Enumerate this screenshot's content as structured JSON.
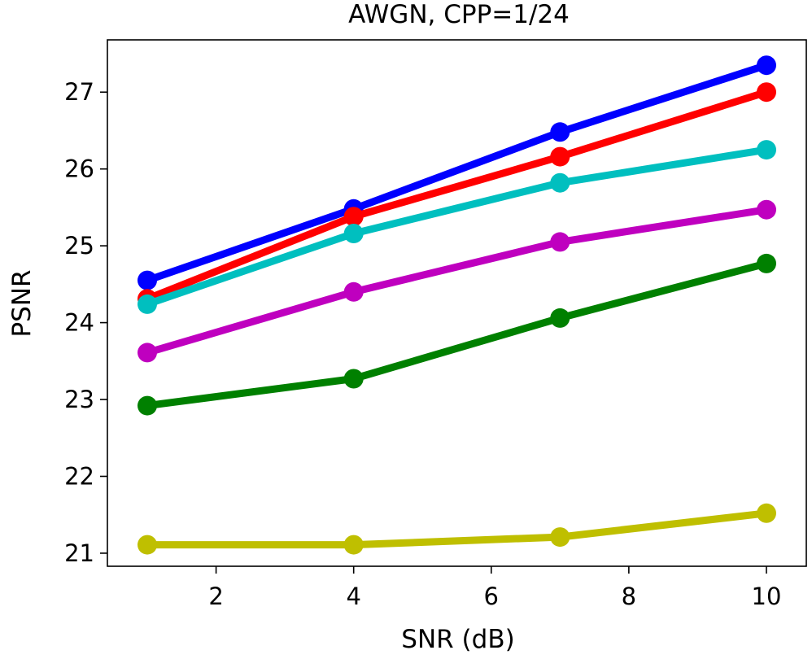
{
  "chart_data": {
    "type": "line",
    "title": "AWGN, CPP=1/24",
    "xlabel": "SNR (dB)",
    "ylabel": "PSNR",
    "xlim": [
      0.42,
      10.58
    ],
    "ylim": [
      20.83,
      27.68
    ],
    "xticks": [
      2,
      4,
      6,
      8,
      10
    ],
    "yticks": [
      21,
      22,
      23,
      24,
      25,
      26,
      27
    ],
    "grid": false,
    "x": [
      1,
      4,
      7,
      10
    ],
    "series": [
      {
        "name": "blue",
        "color": "#0000ff",
        "values": [
          24.55,
          25.48,
          26.48,
          27.35
        ]
      },
      {
        "name": "red",
        "color": "#ff0000",
        "values": [
          24.31,
          25.38,
          26.16,
          27.0
        ]
      },
      {
        "name": "cyan",
        "color": "#00bfbf",
        "values": [
          24.24,
          25.16,
          25.82,
          26.25
        ]
      },
      {
        "name": "magenta",
        "color": "#bf00bf",
        "values": [
          23.61,
          24.4,
          25.05,
          25.47
        ]
      },
      {
        "name": "green",
        "color": "#008000",
        "values": [
          22.92,
          23.27,
          24.06,
          24.77
        ]
      },
      {
        "name": "olive",
        "color": "#bfbf00",
        "values": [
          21.11,
          21.11,
          21.21,
          21.52
        ]
      }
    ]
  }
}
